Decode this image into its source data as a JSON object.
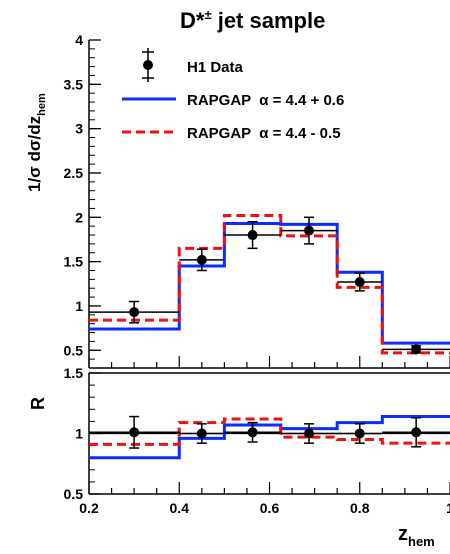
{
  "chart_data": [
    {
      "type": "line",
      "title_main": "D*",
      "title_sup": "±",
      "title_rest": " jet sample",
      "ylabel": "1/σ dσ/dz",
      "ylabel_sub": "hem",
      "xlim": [
        0.2,
        1.0
      ],
      "ylim": [
        0.3,
        4.0
      ],
      "yticks": [
        0.5,
        1,
        1.5,
        2,
        2.5,
        3,
        3.5,
        4
      ],
      "ytick_labels": [
        "0.5",
        "1",
        "1.5",
        "2",
        "2.5",
        "3",
        "3.5",
        "4"
      ],
      "bin_edges": [
        0.2,
        0.4,
        0.5,
        0.625,
        0.75,
        0.85,
        1.0
      ],
      "legend": {
        "data_label": "H1 Data",
        "series1_name": "RAPGAP",
        "series1_alpha": "α = 4.4 + 0.6",
        "series2_name": "RAPGAP",
        "series2_alpha": "α = 4.4 - 0.5"
      },
      "series": [
        {
          "name": "H1 Data",
          "style": "points",
          "color": "#000000",
          "x": [
            0.3,
            0.45,
            0.5625,
            0.6875,
            0.8,
            0.925
          ],
          "values": [
            0.93,
            1.52,
            1.8,
            1.85,
            1.27,
            0.51
          ],
          "yerr": [
            0.12,
            0.12,
            0.15,
            0.15,
            0.1,
            0.04
          ]
        },
        {
          "name": "RAPGAP α = 4.4 + 0.6",
          "style": "solid",
          "color": "#0a2cff",
          "values": [
            0.74,
            1.45,
            1.93,
            1.92,
            1.38,
            0.58
          ]
        },
        {
          "name": "RAPGAP α = 4.4 - 0.5",
          "style": "dashed",
          "color": "#ee1111",
          "values": [
            0.84,
            1.65,
            2.02,
            1.79,
            1.21,
            0.47
          ]
        }
      ]
    },
    {
      "type": "line",
      "ylabel": "R",
      "xlabel": "z",
      "xlabel_sub": "hem",
      "xlim": [
        0.2,
        1.0
      ],
      "ylim": [
        0.5,
        1.5
      ],
      "xticks": [
        0.2,
        0.4,
        0.6,
        0.8,
        1.0
      ],
      "xtick_labels": [
        "0.2",
        "0.4",
        "0.6",
        "0.8",
        "1"
      ],
      "yticks": [
        0.5,
        1,
        1.5
      ],
      "ytick_labels": [
        "0.5",
        "1",
        "1.5"
      ],
      "reference_line": 1.0,
      "bin_edges": [
        0.2,
        0.4,
        0.5,
        0.625,
        0.75,
        0.85,
        1.0
      ],
      "series": [
        {
          "name": "H1 Data ratio",
          "style": "points",
          "color": "#000000",
          "x": [
            0.3,
            0.45,
            0.5625,
            0.6875,
            0.8,
            0.925
          ],
          "values": [
            1.01,
            1.0,
            1.01,
            1.0,
            1.0,
            1.01
          ],
          "yerr": [
            0.13,
            0.08,
            0.08,
            0.08,
            0.08,
            0.12
          ]
        },
        {
          "name": "RAPGAP α = 4.4 + 0.6 ratio",
          "style": "solid",
          "color": "#0a2cff",
          "values": [
            0.8,
            0.96,
            1.07,
            1.04,
            1.09,
            1.14
          ]
        },
        {
          "name": "RAPGAP α = 4.4 - 0.5 ratio",
          "style": "dashed",
          "color": "#ee1111",
          "values": [
            0.91,
            1.09,
            1.12,
            0.97,
            0.95,
            0.92
          ]
        }
      ]
    }
  ]
}
